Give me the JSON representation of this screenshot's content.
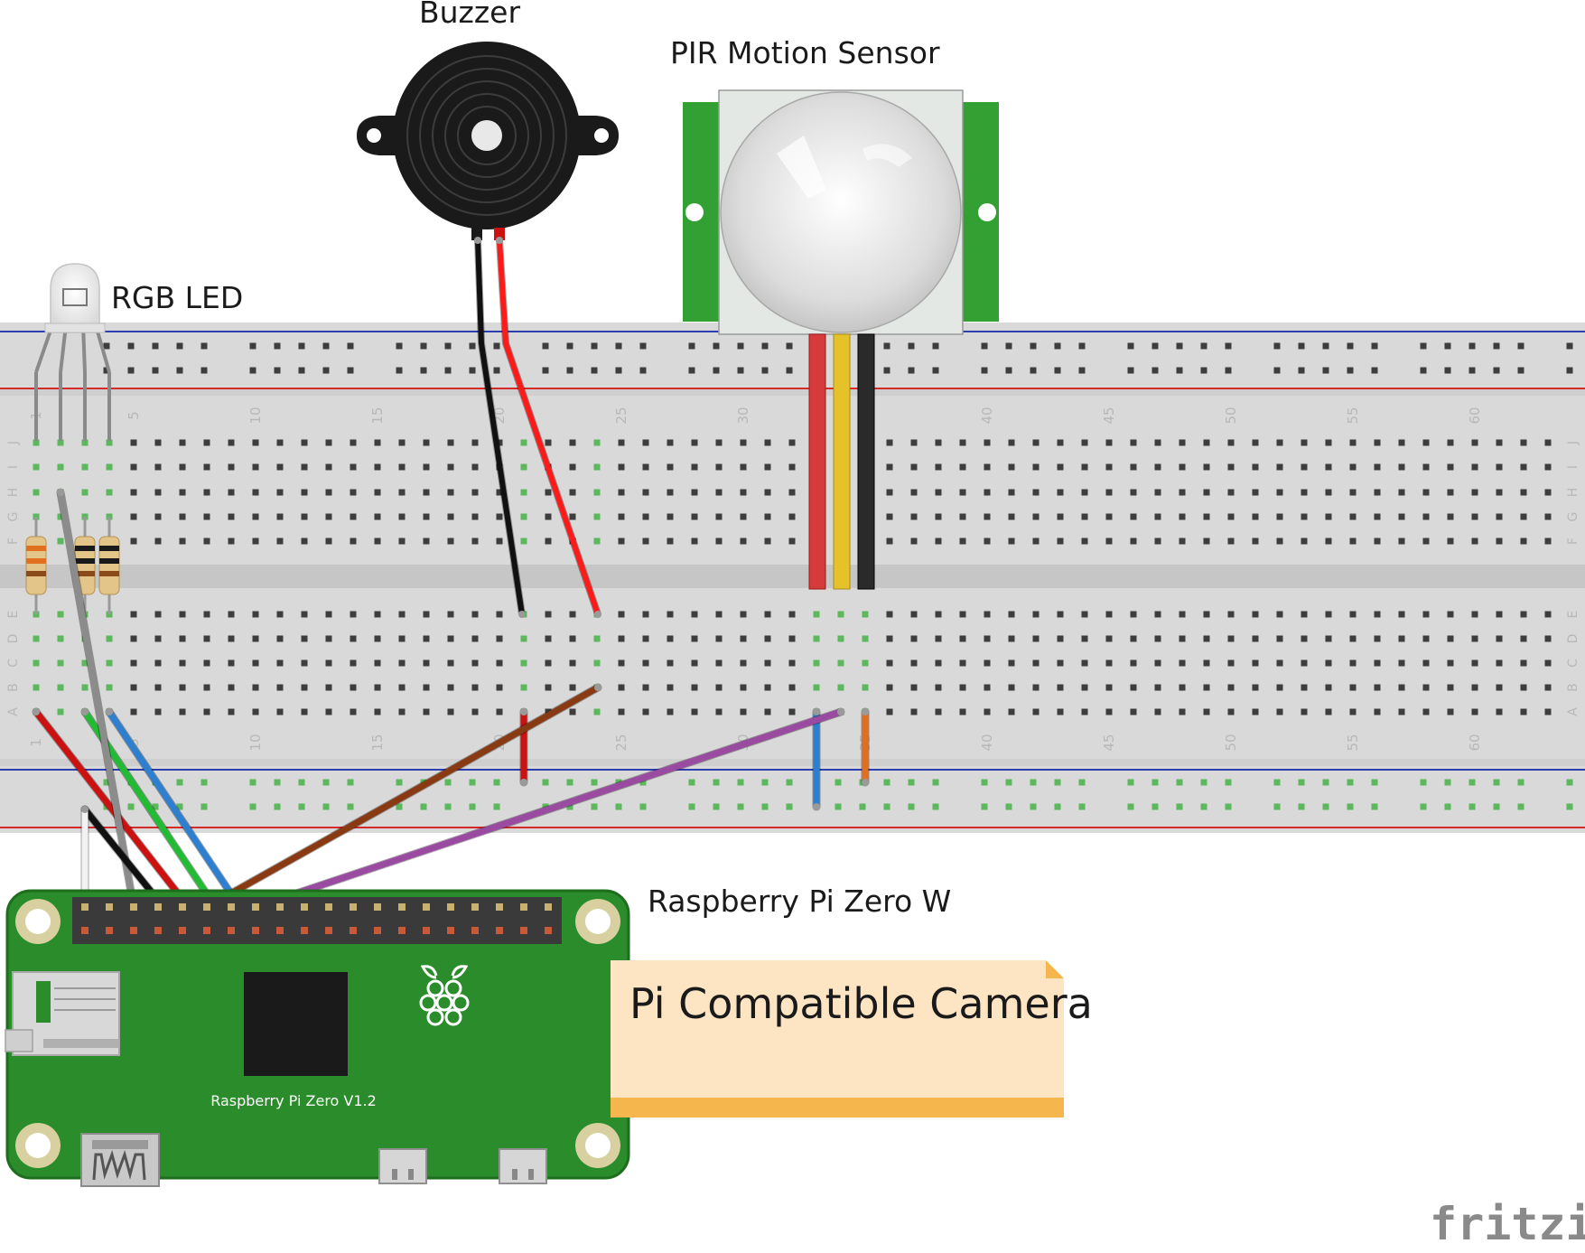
{
  "labels": {
    "buzzer": "Buzzer",
    "pir": "PIR Motion Sensor",
    "rgb_led": "RGB LED",
    "pi": "Raspberry Pi Zero W",
    "pi_version": "Raspberry Pi Zero V1.2",
    "note": "Pi Compatible Camera",
    "brand": "fritzing"
  },
  "breadboard": {
    "column_numbers": [
      "1",
      "5",
      "10",
      "15",
      "20",
      "25",
      "30",
      "35",
      "40",
      "45",
      "50",
      "55",
      "60"
    ],
    "rows_top": [
      "J",
      "I",
      "H",
      "G",
      "F"
    ],
    "rows_bottom": [
      "E",
      "D",
      "C",
      "B",
      "A"
    ]
  },
  "colors": {
    "breadboard": "#d9d9d9",
    "hole": "#3d3d3d",
    "hole_active": "#5cb85c",
    "rail_blue": "#2b3fb0",
    "rail_red": "#d42a2a",
    "pcb_green": "#2a8c2a",
    "pir_green": "#33a033",
    "note_fill": "#fde5c4",
    "note_band": "#f5b64e",
    "wire_red": "#cc1111",
    "wire_black": "#111111",
    "wire_green": "#22bb33",
    "wire_blue": "#2d7fd0",
    "wire_brown": "#8a3a12",
    "wire_purple": "#9a4aa0",
    "wire_grey": "#8c8c8c",
    "wire_yellow": "#e6c22a",
    "wire_orange": "#e07020"
  },
  "icons": {
    "raspberry_logo": "raspberry-icon",
    "sd_slot": "sd-card-icon"
  }
}
